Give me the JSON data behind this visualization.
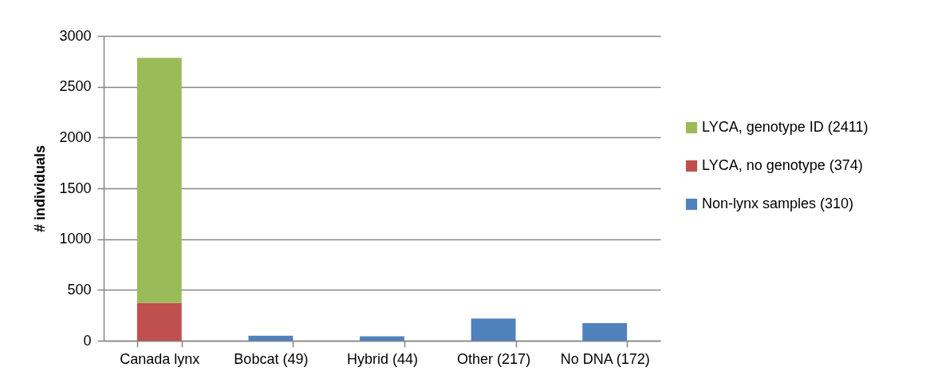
{
  "chart_data": {
    "type": "bar",
    "ylabel": "# individuals",
    "categories": [
      "Canada lynx",
      "Bobcat (49)",
      "Hybrid (44)",
      "Other (217)",
      "No DNA (172)"
    ],
    "stacked": true,
    "series": [
      {
        "name": "Non-lynx samples (310)",
        "color": "#4f81bd",
        "values": [
          null,
          49,
          44,
          217,
          172
        ]
      },
      {
        "name": "LYCA, no genotype (374)",
        "color": "#c0504d",
        "values": [
          374,
          null,
          null,
          null,
          null
        ]
      },
      {
        "name": "LYCA, genotype ID (2411)",
        "color": "#9bbb59",
        "values": [
          2411,
          null,
          null,
          null,
          null
        ]
      }
    ],
    "ylim": [
      0,
      3000
    ],
    "yticks": [
      0,
      500,
      1000,
      1500,
      2000,
      2500,
      3000
    ],
    "grid": "y",
    "legend": "right"
  }
}
